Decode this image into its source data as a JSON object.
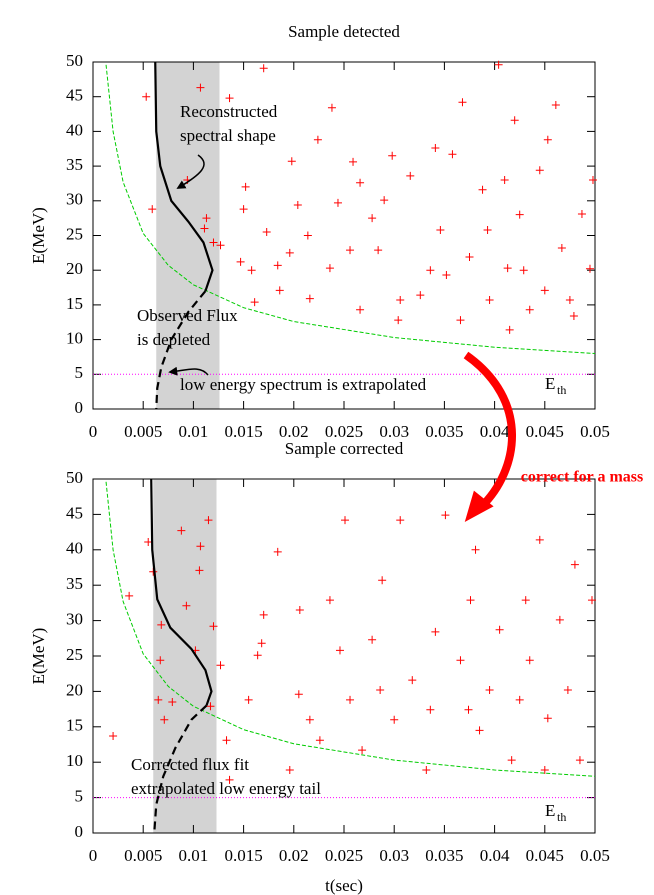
{
  "chart_data": [
    {
      "type": "scatter",
      "title": "Sample detected",
      "ylabel": "E(MeV)",
      "xlim": [
        0,
        0.05
      ],
      "ylim": [
        0,
        50
      ],
      "xticks": [
        0,
        0.005,
        0.01,
        0.015,
        0.02,
        0.025,
        0.03,
        0.035,
        0.04,
        0.045,
        0.05
      ],
      "yticks": [
        0,
        5,
        10,
        15,
        20,
        25,
        30,
        35,
        40,
        45,
        50
      ],
      "band": [
        0.0063,
        0.0126
      ],
      "threshold": 5,
      "threshold_label": "E",
      "threshold_sub": "th",
      "series": [
        {
          "style": "plus",
          "color": "#ff0000",
          "x": [
            0.0053,
            0.0107,
            0.0059,
            0.0094,
            0.0113,
            0.0111,
            0.012,
            0.0127,
            0.0136,
            0.017,
            0.0152,
            0.015,
            0.0147,
            0.0158,
            0.0161,
            0.0173,
            0.0184,
            0.0196,
            0.0198,
            0.0204,
            0.0214,
            0.0216,
            0.0224,
            0.0236,
            0.0244,
            0.0259,
            0.0266,
            0.0238,
            0.0278,
            0.0284,
            0.029,
            0.0298,
            0.0304,
            0.0316,
            0.0326,
            0.0341,
            0.0346,
            0.0358,
            0.0368,
            0.0375,
            0.0388,
            0.0395,
            0.0404,
            0.0413,
            0.0425,
            0.0435,
            0.0445,
            0.0453,
            0.0461,
            0.0467,
            0.0475,
            0.0487,
            0.0495,
            0.0479,
            0.0429,
            0.0366,
            0.0266,
            0.0186,
            0.041,
            0.042,
            0.0306,
            0.0256,
            0.0336,
            0.0393,
            0.045,
            0.0498,
            0.0415,
            0.0352
          ],
          "values": [
            45,
            46.3,
            28.8,
            33,
            27.5,
            26,
            24,
            23.6,
            44.8,
            49.1,
            32,
            28.8,
            21.2,
            20,
            15.4,
            25.5,
            20.7,
            22.5,
            35.7,
            29.4,
            25,
            15.9,
            38.8,
            20.3,
            29.7,
            35.6,
            32.6,
            43.4,
            27.5,
            22.9,
            30.1,
            36.5,
            12.8,
            33.6,
            16.4,
            37.6,
            25.8,
            36.7,
            44.2,
            21.9,
            31.6,
            15.7,
            49.6,
            20.3,
            28,
            14.3,
            34.4,
            38.8,
            43.8,
            23.2,
            15.7,
            28.1,
            20.2,
            13.4,
            20,
            12.8,
            14.3,
            17.1,
            33,
            41.6,
            15.7,
            22.9,
            20,
            25.8,
            17.1,
            33,
            11.4,
            19.3
          ]
        },
        {
          "style": "dashed",
          "color": "#00cc00",
          "x": [
            0.0013,
            0.002,
            0.003,
            0.005,
            0.0075,
            0.01,
            0.015,
            0.02,
            0.03,
            0.04,
            0.05
          ],
          "values": [
            49.6,
            40,
            32.7,
            25.3,
            20.7,
            17.9,
            14.6,
            12.6,
            10.3,
            8.9,
            8
          ]
        },
        {
          "style": "solid",
          "color": "#000000",
          "x": [
            0.0062,
            0.0063,
            0.0067,
            0.0078,
            0.0095,
            0.011,
            0.0119,
            0.0112
          ],
          "values": [
            50,
            40,
            35,
            30,
            27,
            24,
            20,
            17
          ]
        },
        {
          "style": "dashed-black",
          "color": "#000000",
          "x": [
            0.0112,
            0.0095,
            0.0078,
            0.0068,
            0.0064,
            0.0063
          ],
          "values": [
            17,
            14,
            10,
            6,
            3,
            0
          ]
        }
      ],
      "annotations": [
        "Reconstructed",
        "spectral shape",
        "Observed Flux",
        "is depleted",
        "low energy spectrum is extrapolated"
      ]
    },
    {
      "type": "scatter",
      "title": "Sample corrected",
      "ylabel": "E(MeV)",
      "xlabel": "t(sec)",
      "xlim": [
        0,
        0.05
      ],
      "ylim": [
        0,
        50
      ],
      "xticks": [
        0,
        0.005,
        0.01,
        0.015,
        0.02,
        0.025,
        0.03,
        0.035,
        0.04,
        0.045,
        0.05
      ],
      "yticks": [
        0,
        5,
        10,
        15,
        20,
        25,
        30,
        35,
        40,
        45,
        50
      ],
      "band": [
        0.006,
        0.0123
      ],
      "threshold": 5,
      "threshold_label": "E",
      "threshold_sub": "th",
      "series": [
        {
          "style": "plus",
          "color": "#ff0000",
          "x": [
            0.0036,
            0.002,
            0.0055,
            0.006,
            0.0068,
            0.0067,
            0.0065,
            0.0071,
            0.0079,
            0.0088,
            0.0093,
            0.0102,
            0.0106,
            0.0107,
            0.0115,
            0.0117,
            0.012,
            0.0127,
            0.0133,
            0.0155,
            0.0164,
            0.0168,
            0.0184,
            0.017,
            0.0205,
            0.0206,
            0.0226,
            0.0236,
            0.0246,
            0.0256,
            0.0251,
            0.0268,
            0.0278,
            0.0288,
            0.03,
            0.0306,
            0.0318,
            0.0332,
            0.0341,
            0.0351,
            0.0366,
            0.0374,
            0.0381,
            0.0395,
            0.0405,
            0.0417,
            0.0431,
            0.0435,
            0.0445,
            0.0453,
            0.0465,
            0.0473,
            0.0485,
            0.0497,
            0.048,
            0.0425,
            0.0385,
            0.0336,
            0.0286,
            0.0216,
            0.045,
            0.0376,
            0.0196,
            0.0136
          ],
          "values": [
            33.5,
            13.7,
            41.1,
            36.9,
            29.4,
            24.4,
            18.8,
            16,
            18.5,
            42.7,
            32.1,
            25.8,
            37.1,
            40.5,
            44.2,
            17.9,
            29.2,
            23.7,
            13.1,
            18.8,
            25.1,
            26.8,
            39.7,
            30.8,
            19.6,
            31.5,
            13.1,
            32.9,
            25.8,
            18.8,
            44.2,
            11.7,
            27.3,
            35.7,
            16,
            44.2,
            21.6,
            8.9,
            28.4,
            44.9,
            24.4,
            17.4,
            40,
            20.2,
            28.7,
            10.3,
            32.9,
            24.4,
            41.4,
            16.2,
            30.1,
            20.2,
            10.3,
            32.9,
            37.9,
            18.8,
            14.5,
            17.4,
            20.2,
            16,
            8.9,
            32.9,
            8.9,
            7.5
          ]
        },
        {
          "style": "dashed",
          "color": "#00cc00",
          "x": [
            0.0013,
            0.002,
            0.003,
            0.005,
            0.0075,
            0.01,
            0.015,
            0.02,
            0.03,
            0.04,
            0.05
          ],
          "values": [
            49.6,
            40,
            32.7,
            25.3,
            20.7,
            17.9,
            14.6,
            12.6,
            10.3,
            8.9,
            8
          ]
        },
        {
          "style": "solid",
          "color": "#000000",
          "x": [
            0.0058,
            0.0059,
            0.0064,
            0.0077,
            0.0098,
            0.0112,
            0.0118,
            0.0113
          ],
          "values": [
            50,
            40,
            33,
            29,
            26,
            23,
            20,
            18
          ]
        },
        {
          "style": "dashed-black",
          "color": "#000000",
          "x": [
            0.0113,
            0.0098,
            0.0082,
            0.007,
            0.0063,
            0.0061
          ],
          "values": [
            18,
            16,
            12,
            8,
            4,
            0
          ]
        }
      ],
      "annotations": [
        "Corrected flux fit",
        "extrapolated low energy tail"
      ]
    }
  ],
  "side_note": "correct for a mass"
}
